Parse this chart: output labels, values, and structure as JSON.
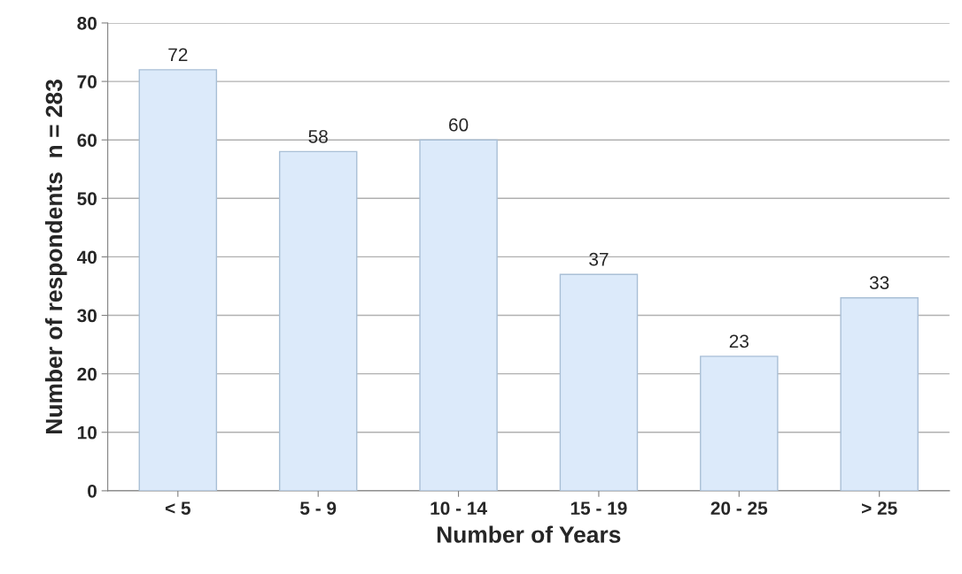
{
  "chart_data": {
    "type": "bar",
    "xlabel": "Number of Years",
    "ylabel": "Number of respondents  n = 283",
    "categories": [
      "< 5",
      "5 - 9",
      "10 - 14",
      "15 - 19",
      "20 - 25",
      "> 25"
    ],
    "values": [
      72,
      58,
      60,
      37,
      23,
      33
    ],
    "color": "#dceafa",
    "ylim": [
      0,
      80
    ],
    "yticks": [
      0,
      10,
      20,
      30,
      40,
      50,
      60,
      70,
      80
    ],
    "grid": "y",
    "data_labels": true
  }
}
